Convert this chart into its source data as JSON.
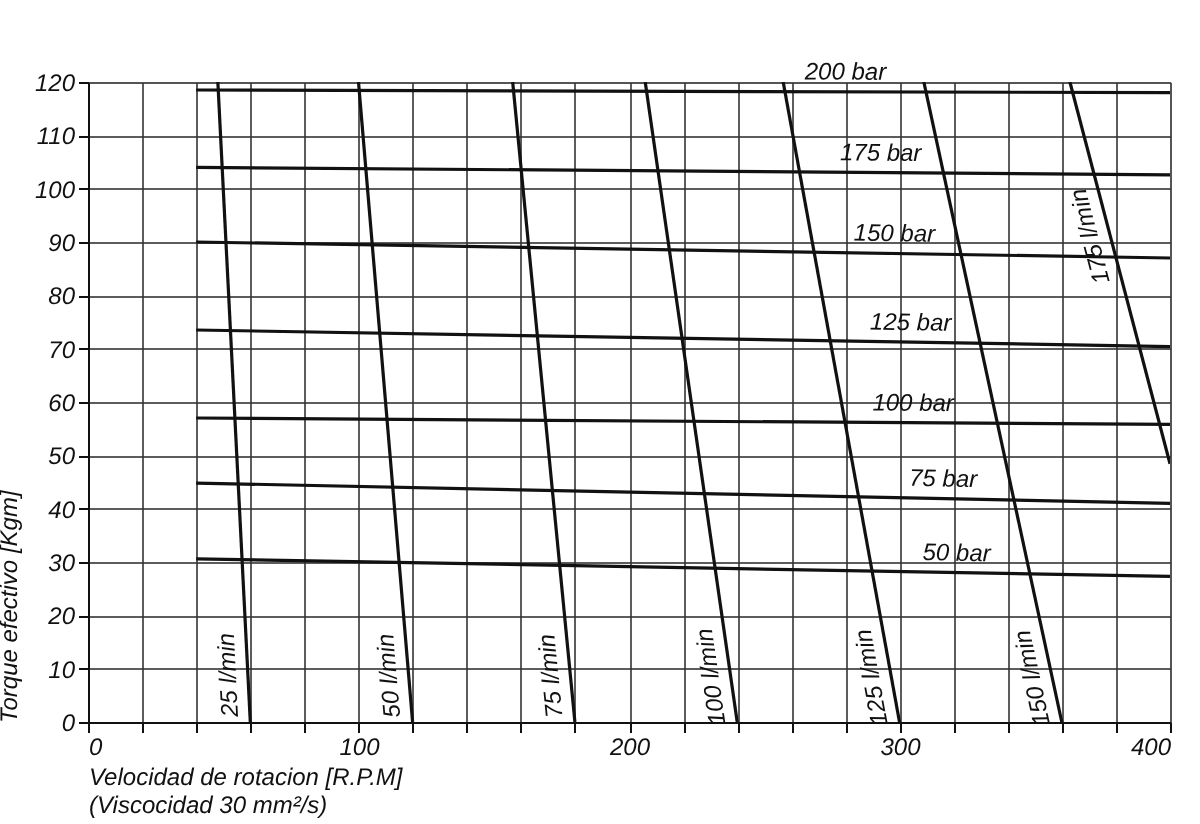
{
  "chart_data": {
    "type": "line",
    "xlabel": "Velocidad de rotacion  [R.P.M]\n(Viscocidad  30 mm²/s)",
    "ylabel": "Torque  efectivo  [Kgm]",
    "xlim": [
      0,
      400
    ],
    "ylim": [
      0,
      120
    ],
    "xticks": [
      0,
      {
        "value": 20,
        "label": null
      },
      {
        "value": 40,
        "label": null
      },
      {
        "value": 60,
        "label": null
      },
      {
        "value": 80,
        "label": null
      },
      100,
      {
        "value": 120,
        "label": null
      },
      {
        "value": 140,
        "label": null
      },
      {
        "value": 160,
        "label": null
      },
      {
        "value": 180,
        "label": null
      },
      200,
      {
        "value": 220,
        "label": null
      },
      {
        "value": 240,
        "label": null
      },
      {
        "value": 260,
        "label": null
      },
      {
        "value": 280,
        "label": null
      },
      300,
      {
        "value": 320,
        "label": null
      },
      {
        "value": 340,
        "label": null
      },
      {
        "value": 360,
        "label": null
      },
      {
        "value": 380,
        "label": null
      },
      400
    ],
    "yticks": [
      0,
      10,
      20,
      30,
      40,
      50,
      60,
      70,
      80,
      90,
      100,
      110,
      120
    ],
    "grid": true,
    "line_style": "solid",
    "marker": "none",
    "series": [
      {
        "color": "#111111",
        "x": [
          40,
          400
        ],
        "values": [
          118.5,
          118
        ]
      },
      {
        "color": "#111111",
        "x": [
          40,
          400
        ],
        "values": [
          104,
          102.6
        ]
      },
      {
        "color": "#111111",
        "x": [
          40,
          400
        ],
        "values": [
          90,
          87
        ]
      },
      {
        "color": "#111111",
        "x": [
          40,
          400
        ],
        "values": [
          73.5,
          70.4
        ]
      },
      {
        "color": "#111111",
        "x": [
          40,
          400
        ],
        "values": [
          57,
          55.8
        ]
      },
      {
        "color": "#111111",
        "x": [
          40,
          400
        ],
        "values": [
          44.8,
          41
        ]
      },
      {
        "color": "#111111",
        "x": [
          40,
          400
        ],
        "values": [
          30.6,
          27.3
        ]
      },
      {
        "color": "#111111",
        "x": [
          48,
          60
        ],
        "values": [
          120,
          0
        ]
      },
      {
        "color": "#111111",
        "x": [
          100,
          120
        ],
        "values": [
          120,
          0
        ]
      },
      {
        "color": "#111111",
        "x": [
          157,
          180
        ],
        "values": [
          120,
          0
        ]
      },
      {
        "color": "#111111",
        "x": [
          206,
          240
        ],
        "values": [
          120,
          0
        ]
      },
      {
        "color": "#111111",
        "x": [
          257,
          300
        ],
        "values": [
          120,
          0
        ]
      },
      {
        "color": "#111111",
        "x": [
          309,
          360
        ],
        "values": [
          120,
          0
        ]
      },
      {
        "color": "#111111",
        "x": [
          363,
          400
        ],
        "values": [
          120,
          48.4
        ]
      }
    ],
    "annotations": [
      {
        "text": "200 bar",
        "x": 280,
        "y": 118.2
      },
      {
        "text": "175 bar",
        "x": 293,
        "y": 103
      },
      {
        "text": "150 bar",
        "x": 298,
        "y": 87.9
      },
      {
        "text": "125 bar",
        "x": 304,
        "y": 71.2
      },
      {
        "text": "100 bar",
        "x": 305,
        "y": 56.1
      },
      {
        "text": "75 bar",
        "x": 316,
        "y": 41.9
      },
      {
        "text": "50 bar",
        "x": 321,
        "y": 28
      },
      {
        "text": "25 l/min",
        "x": 59.1,
        "y": 9
      },
      {
        "text": "50 l/min",
        "x": 118.5,
        "y": 9
      },
      {
        "text": "75 l/min",
        "x": 178.3,
        "y": 9
      },
      {
        "text": "100 l/min",
        "x": 237.5,
        "y": 9
      },
      {
        "text": "125 l/min",
        "x": 296.8,
        "y": 9
      },
      {
        "text": "150 l/min",
        "x": 356.2,
        "y": 9
      },
      {
        "text": "175 l/min",
        "x": 377.5,
        "y": 92
      }
    ]
  }
}
